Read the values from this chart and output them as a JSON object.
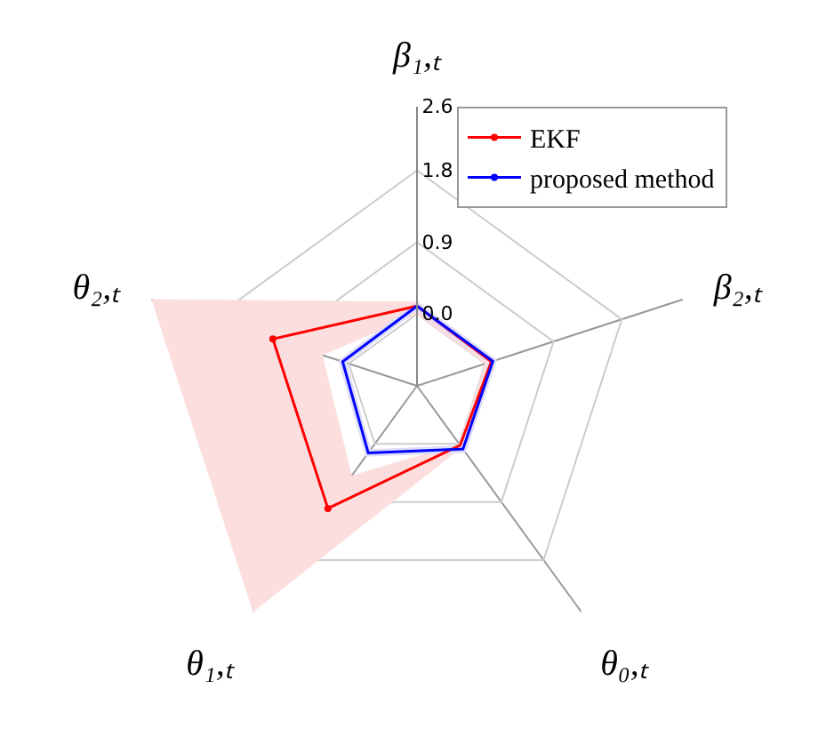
{
  "chart_data": {
    "type": "radar",
    "categories": [
      "β₁,ₜ",
      "β₂,ₜ",
      "θ₀,ₜ",
      "θ₁,ₜ",
      "θ₂,ₜ"
    ],
    "ylim": [
      -0.9,
      2.6
    ],
    "yticks": [
      {
        "value": 0,
        "label": "0.0"
      },
      0.9,
      1.8,
      2.6
    ],
    "grid": true,
    "legend": "top right",
    "marker": "circle",
    "line_style": "solid",
    "series": [
      {
        "color": "#fcdede",
        "marker": "none",
        "values": [
          0.15,
          0.12,
          0.05,
          2.6,
          2.6
        ]
      },
      {
        "type": "area",
        "color": "#fcdede",
        "marker": "none",
        "values": [
          0.0,
          0.0,
          0.0,
          0.5,
          0.35
        ]
      },
      {
        "color": "#dcdcfa",
        "marker": "none",
        "values": [
          0.15,
          0.15,
          0.13,
          0.19,
          0.13
        ]
      },
      {
        "type": "area",
        "color": "#dcdcfa",
        "marker": "none",
        "values": [
          0.05,
          0.05,
          0.03,
          0.09,
          0.03
        ]
      },
      {
        "name": "EKF",
        "color": "#ff0000",
        "values": [
          0.1,
          0.08,
          0.02,
          1.0,
          1.0
        ]
      },
      {
        "name": "proposed method",
        "color": "#0000ff",
        "values": [
          0.1,
          0.1,
          0.08,
          0.14,
          0.08
        ]
      }
    ]
  }
}
